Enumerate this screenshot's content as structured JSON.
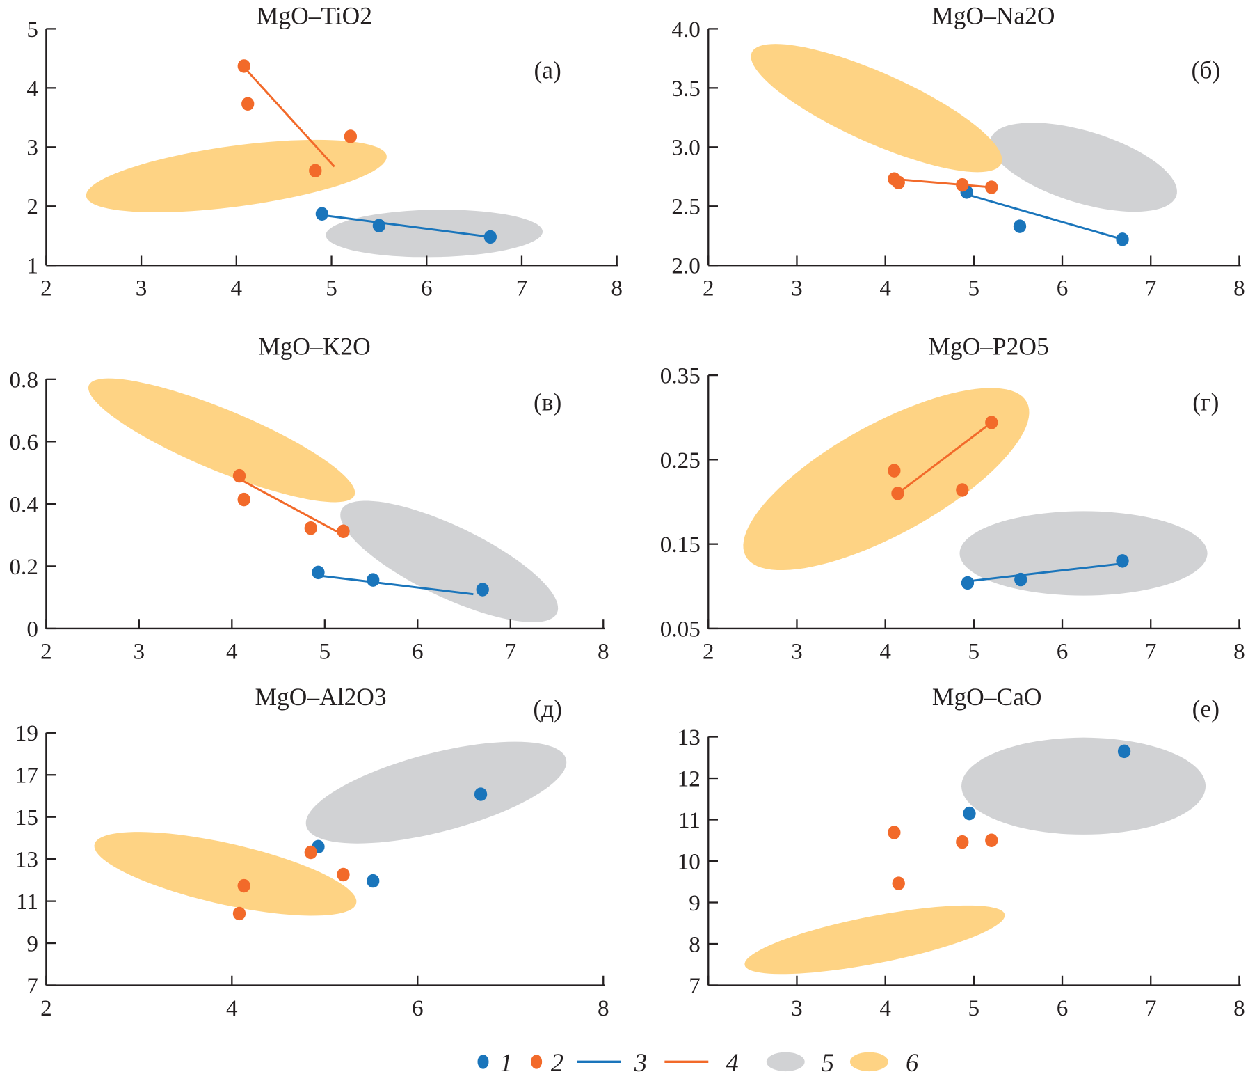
{
  "colors": {
    "series1": "#1a75bb",
    "series2": "#f26a2a",
    "field5": "#d1d2d4",
    "field6": "#fed384",
    "axis": "#231f20"
  },
  "legend": [
    {
      "label": "1",
      "kind": "point",
      "color": "#1a75bb"
    },
    {
      "label": "2",
      "kind": "point",
      "color": "#f26a2a"
    },
    {
      "label": "3",
      "kind": "line",
      "color": "#1a75bb"
    },
    {
      "label": "4",
      "kind": "line",
      "color": "#f26a2a"
    },
    {
      "label": "5",
      "kind": "ellipse",
      "color": "#d1d2d4"
    },
    {
      "label": "6",
      "kind": "ellipse",
      "color": "#fed384"
    }
  ],
  "chart_data": [
    {
      "type": "scatter",
      "title": "MgO–TiO2",
      "panel_label": "(а)",
      "xlim": [
        2,
        8
      ],
      "ylim": [
        1,
        5
      ],
      "x_ticks": [
        "2",
        "3",
        "4",
        "5",
        "6",
        "7",
        "8"
      ],
      "y_ticks": [
        "1",
        "2",
        "3",
        "4",
        "5"
      ],
      "series1_points": [
        [
          4.9,
          1.87
        ],
        [
          5.5,
          1.67
        ],
        [
          6.67,
          1.48
        ]
      ],
      "series2_points": [
        [
          4.08,
          4.37
        ],
        [
          4.12,
          3.73
        ],
        [
          5.2,
          3.18
        ],
        [
          4.83,
          2.6
        ]
      ],
      "series3_line": [
        [
          4.9,
          1.85
        ],
        [
          6.67,
          1.48
        ]
      ],
      "series4_line": [
        [
          4.08,
          4.35
        ],
        [
          5.03,
          2.67
        ]
      ],
      "field5": {
        "center": [
          6.08,
          1.54
        ],
        "axis_a": [
          7.22,
          1.57
        ],
        "axis_b": [
          6.08,
          1.94
        ]
      },
      "field6": {
        "center": [
          4.0,
          2.51
        ],
        "axis_a": [
          5.58,
          2.85
        ],
        "axis_b": [
          4.04,
          2.0
        ]
      }
    },
    {
      "type": "scatter",
      "title": "MgO–Na2O",
      "panel_label": "(б)",
      "xlim": [
        2,
        8
      ],
      "ylim": [
        2,
        4
      ],
      "x_ticks": [
        "2",
        "3",
        "4",
        "5",
        "6",
        "7",
        "8"
      ],
      "y_ticks": [
        "2.0",
        "2.5",
        "3.0",
        "3.5",
        "4.0"
      ],
      "series1_points": [
        [
          4.92,
          2.62
        ],
        [
          5.52,
          2.33
        ],
        [
          6.68,
          2.22
        ]
      ],
      "series2_points": [
        [
          4.1,
          2.73
        ],
        [
          4.15,
          2.7
        ],
        [
          4.87,
          2.68
        ],
        [
          5.2,
          2.66
        ]
      ],
      "series3_line": [
        [
          4.92,
          2.6
        ],
        [
          6.68,
          2.22
        ]
      ],
      "series4_line": [
        [
          4.1,
          2.73
        ],
        [
          5.2,
          2.66
        ]
      ],
      "field5": {
        "center": [
          6.24,
          2.83
        ],
        "axis_a": [
          7.29,
          2.59
        ],
        "axis_b": [
          6.12,
          2.54
        ]
      },
      "field6": {
        "center": [
          3.9,
          3.33
        ],
        "axis_a": [
          5.31,
          2.86
        ],
        "axis_b": [
          3.74,
          3.06
        ]
      }
    },
    {
      "type": "scatter",
      "title": "MgO–K2O",
      "panel_label": "(в)",
      "xlim": [
        2,
        8
      ],
      "ylim": [
        0,
        0.8
      ],
      "x_ticks": [
        "2",
        "3",
        "4",
        "5",
        "6",
        "7",
        "8"
      ],
      "y_ticks": [
        "0",
        "0.2",
        "0.4",
        "0.6",
        "0.8"
      ],
      "series1_points": [
        [
          4.93,
          0.18
        ],
        [
          5.52,
          0.156
        ],
        [
          6.7,
          0.125
        ]
      ],
      "series2_points": [
        [
          4.08,
          0.49
        ],
        [
          4.13,
          0.414
        ],
        [
          4.85,
          0.322
        ],
        [
          5.2,
          0.312
        ]
      ],
      "series3_line": [
        [
          4.93,
          0.17
        ],
        [
          6.6,
          0.11
        ]
      ],
      "series4_line": [
        [
          4.08,
          0.48
        ],
        [
          5.2,
          0.3
        ]
      ],
      "field5": {
        "center": [
          6.34,
          0.215
        ],
        "axis_a": [
          7.5,
          0.049
        ],
        "axis_b": [
          6.17,
          0.113
        ]
      },
      "field6": {
        "center": [
          3.89,
          0.604
        ],
        "axis_a": [
          5.32,
          0.427
        ],
        "axis_b": [
          3.76,
          0.514
        ]
      }
    },
    {
      "type": "scatter",
      "title": "MgO–P2O5",
      "panel_label": "(г)",
      "xlim": [
        2,
        8
      ],
      "ylim": [
        0.05,
        0.35
      ],
      "x_ticks": [
        "2",
        "3",
        "4",
        "5",
        "6",
        "7",
        "8"
      ],
      "y_ticks": [
        "0.05",
        "0.15",
        "0.25",
        "0.35"
      ],
      "series1_points": [
        [
          4.93,
          0.104
        ],
        [
          5.53,
          0.108
        ],
        [
          6.68,
          0.13
        ]
      ],
      "series2_points": [
        [
          4.1,
          0.237
        ],
        [
          4.14,
          0.21
        ],
        [
          4.87,
          0.214
        ],
        [
          5.2,
          0.294
        ]
      ],
      "series3_line": [
        [
          4.93,
          0.106
        ],
        [
          6.68,
          0.127
        ]
      ],
      "series4_line": [
        [
          4.14,
          0.21
        ],
        [
          5.2,
          0.294
        ]
      ],
      "field5": {
        "center": [
          6.24,
          0.139
        ],
        "axis_a": [
          7.64,
          0.139
        ],
        "axis_b": [
          6.24,
          0.189
        ]
      },
      "field6": {
        "center": [
          4.01,
          0.227
        ],
        "axis_a": [
          5.6,
          0.318
        ],
        "axis_b": [
          4.3,
          0.169
        ]
      }
    },
    {
      "type": "scatter",
      "title": "MgO–Al2O3",
      "panel_label": "(д)",
      "xlim": [
        2,
        8
      ],
      "ylim": [
        7,
        19
      ],
      "x_ticks": [
        "2",
        "4",
        "6",
        "8"
      ],
      "y_ticks": [
        "7",
        "9",
        "11",
        "13",
        "15",
        "17",
        "19"
      ],
      "series1_points": [
        [
          4.93,
          13.59
        ],
        [
          5.52,
          11.96
        ],
        [
          6.68,
          16.08
        ]
      ],
      "series2_points": [
        [
          4.08,
          10.41
        ],
        [
          4.13,
          11.73
        ],
        [
          4.85,
          13.32
        ],
        [
          5.2,
          12.26
        ]
      ],
      "series3_line": [],
      "series4_line": [],
      "field5": {
        "center": [
          6.2,
          16.16
        ],
        "axis_a": [
          7.6,
          17.75
        ],
        "axis_b": [
          6.3,
          14.34
        ]
      },
      "field6": {
        "center": [
          3.93,
          12.3
        ],
        "axis_a": [
          5.34,
          11.05
        ],
        "axis_b": [
          3.86,
          13.85
        ]
      }
    },
    {
      "type": "scatter",
      "title": "MgO–CaO",
      "panel_label": "(е)",
      "xlim": [
        2,
        8
      ],
      "ylim": [
        7,
        13
      ],
      "x_ticks": [
        "3",
        "4",
        "5",
        "6",
        "7",
        "8"
      ],
      "y_ticks": [
        "7",
        "8",
        "9",
        "10",
        "11",
        "12",
        "13"
      ],
      "series1_points": [
        [
          4.95,
          11.15
        ],
        [
          6.7,
          12.65
        ]
      ],
      "series2_points": [
        [
          4.1,
          10.69
        ],
        [
          4.15,
          9.46
        ],
        [
          4.87,
          10.46
        ],
        [
          5.2,
          10.5
        ]
      ],
      "series3_line": [],
      "series4_line": [],
      "field5": {
        "center": [
          6.24,
          11.81
        ],
        "axis_a": [
          7.62,
          11.81
        ],
        "axis_b": [
          6.24,
          12.98
        ]
      },
      "field6": {
        "center": [
          3.88,
          8.1
        ],
        "axis_a": [
          5.35,
          8.71
        ],
        "axis_b": [
          3.93,
          7.54
        ]
      }
    }
  ]
}
